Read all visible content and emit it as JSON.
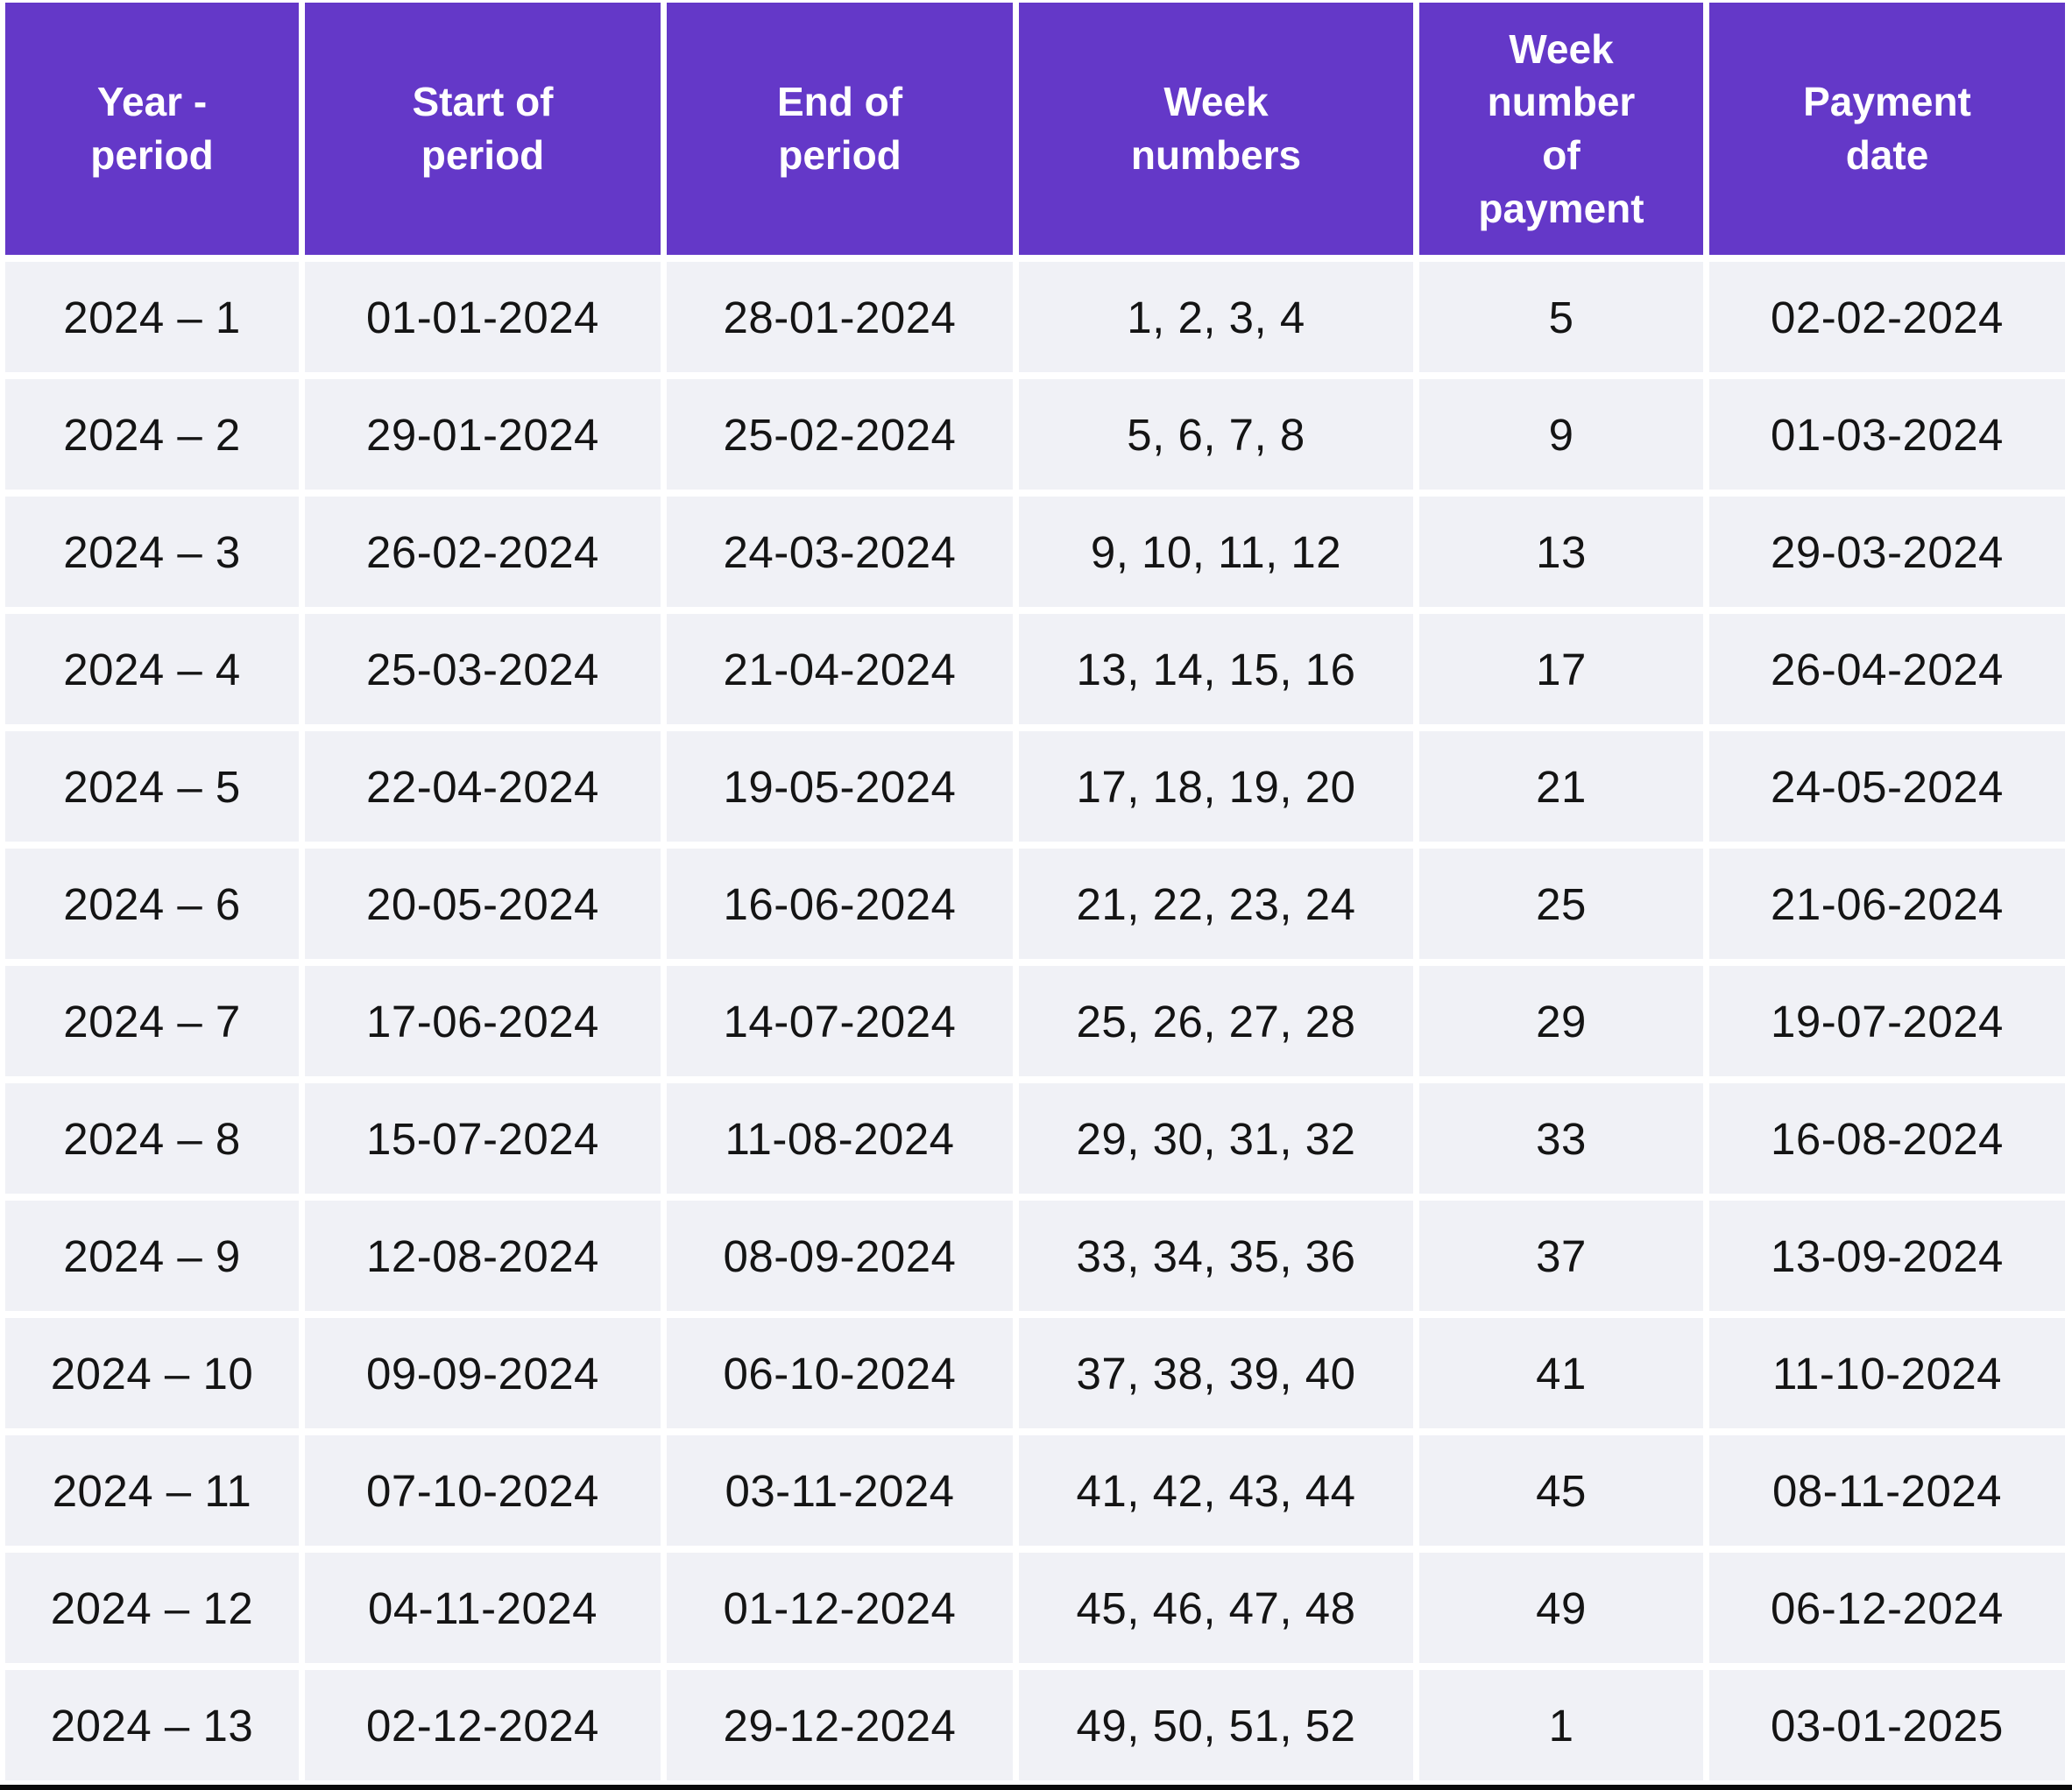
{
  "colors": {
    "header_bg": "#6438C8",
    "header_text": "#FFFFFF",
    "row_bg": "#F0F1F6",
    "body_text": "#141414",
    "gap": "#FFFFFF",
    "bottom_bar": "#0B0B0B"
  },
  "table": {
    "columns": [
      {
        "key": "year_period",
        "label": "Year - period"
      },
      {
        "key": "start_of_period",
        "label": "Start of period"
      },
      {
        "key": "end_of_period",
        "label": "End of period"
      },
      {
        "key": "week_numbers",
        "label": "Week numbers"
      },
      {
        "key": "payment_week_number",
        "label": "Week number of payment"
      },
      {
        "key": "payment_date",
        "label": "Payment date"
      }
    ],
    "rows": [
      {
        "year_period": "2024 – 1",
        "start_of_period": "01-01-2024",
        "end_of_period": "28-01-2024",
        "week_numbers": "1, 2, 3, 4",
        "payment_week_number": "5",
        "payment_date": "02-02-2024"
      },
      {
        "year_period": "2024 – 2",
        "start_of_period": "29-01-2024",
        "end_of_period": "25-02-2024",
        "week_numbers": "5, 6, 7, 8",
        "payment_week_number": "9",
        "payment_date": "01-03-2024"
      },
      {
        "year_period": "2024 – 3",
        "start_of_period": "26-02-2024",
        "end_of_period": "24-03-2024",
        "week_numbers": "9, 10, 11, 12",
        "payment_week_number": "13",
        "payment_date": "29-03-2024"
      },
      {
        "year_period": "2024 – 4",
        "start_of_period": "25-03-2024",
        "end_of_period": "21-04-2024",
        "week_numbers": "13, 14, 15, 16",
        "payment_week_number": "17",
        "payment_date": "26-04-2024"
      },
      {
        "year_period": "2024 – 5",
        "start_of_period": "22-04-2024",
        "end_of_period": "19-05-2024",
        "week_numbers": "17, 18, 19, 20",
        "payment_week_number": "21",
        "payment_date": "24-05-2024"
      },
      {
        "year_period": "2024 – 6",
        "start_of_period": "20-05-2024",
        "end_of_period": "16-06-2024",
        "week_numbers": "21, 22, 23, 24",
        "payment_week_number": "25",
        "payment_date": "21-06-2024"
      },
      {
        "year_period": "2024 – 7",
        "start_of_period": "17-06-2024",
        "end_of_period": "14-07-2024",
        "week_numbers": "25, 26, 27, 28",
        "payment_week_number": "29",
        "payment_date": "19-07-2024"
      },
      {
        "year_period": "2024 – 8",
        "start_of_period": "15-07-2024",
        "end_of_period": "11-08-2024",
        "week_numbers": "29, 30, 31, 32",
        "payment_week_number": "33",
        "payment_date": "16-08-2024"
      },
      {
        "year_period": "2024 – 9",
        "start_of_period": "12-08-2024",
        "end_of_period": "08-09-2024",
        "week_numbers": "33, 34, 35, 36",
        "payment_week_number": "37",
        "payment_date": "13-09-2024"
      },
      {
        "year_period": "2024 – 10",
        "start_of_period": "09-09-2024",
        "end_of_period": "06-10-2024",
        "week_numbers": "37, 38, 39, 40",
        "payment_week_number": "41",
        "payment_date": "11-10-2024"
      },
      {
        "year_period": "2024 – 11",
        "start_of_period": "07-10-2024",
        "end_of_period": "03-11-2024",
        "week_numbers": "41, 42, 43, 44",
        "payment_week_number": "45",
        "payment_date": "08-11-2024"
      },
      {
        "year_period": "2024 – 12",
        "start_of_period": "04-11-2024",
        "end_of_period": "01-12-2024",
        "week_numbers": "45, 46, 47, 48",
        "payment_week_number": "49",
        "payment_date": "06-12-2024"
      },
      {
        "year_period": "2024 – 13",
        "start_of_period": "02-12-2024",
        "end_of_period": "29-12-2024",
        "week_numbers": "49, 50, 51, 52",
        "payment_week_number": "1",
        "payment_date": "03-01-2025"
      }
    ]
  }
}
